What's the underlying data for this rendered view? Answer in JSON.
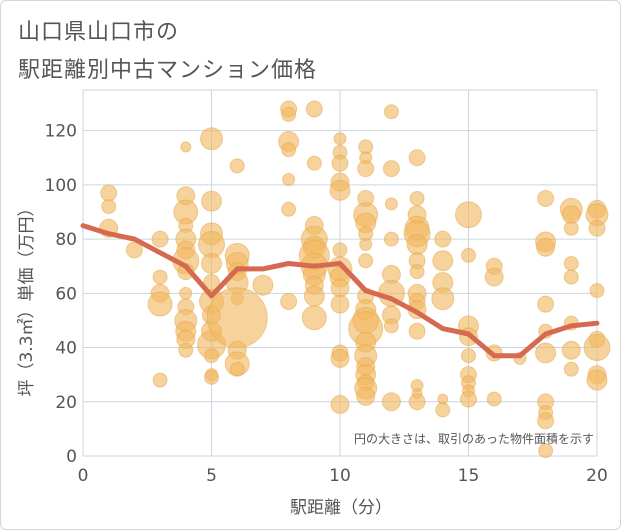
{
  "chart_data": {
    "type": "scatter",
    "title_lines": [
      "山口県山口市の",
      "駅距離別中古マンション価格"
    ],
    "xlabel": "駅距離（分）",
    "ylabel": "坪（3.3㎡）単価（万円）",
    "annotation": "円の大きさは、取引のあった物件面積を示す",
    "xlim": [
      0,
      20
    ],
    "ylim": [
      0,
      135
    ],
    "x_ticks": [
      0,
      5,
      10,
      15,
      20
    ],
    "y_ticks": [
      0,
      20,
      40,
      60,
      80,
      100,
      120
    ],
    "grid": true,
    "colors": {
      "bubble": "#f0b860",
      "line": "#d66a50",
      "grid": "#c9d6e0"
    },
    "line_series": {
      "x": [
        0,
        1,
        2,
        3,
        4,
        5,
        6,
        7,
        8,
        9,
        10,
        11,
        12,
        13,
        14,
        15,
        16,
        17,
        18,
        19,
        20
      ],
      "y": [
        85,
        82,
        80,
        75,
        70,
        59,
        69,
        69,
        71,
        70,
        71,
        61,
        58,
        53,
        47,
        45,
        37,
        37,
        45,
        48,
        49
      ]
    },
    "bubbles": [
      [
        1,
        97,
        8
      ],
      [
        1,
        92,
        7
      ],
      [
        1,
        84,
        9
      ],
      [
        2,
        76,
        8
      ],
      [
        3,
        80,
        8
      ],
      [
        3,
        66,
        7
      ],
      [
        3,
        60,
        9
      ],
      [
        3,
        56,
        12
      ],
      [
        3,
        28,
        7
      ],
      [
        4,
        114,
        5
      ],
      [
        4,
        96,
        9
      ],
      [
        4,
        90,
        12
      ],
      [
        4,
        85,
        7
      ],
      [
        4,
        80,
        10
      ],
      [
        4,
        76,
        9
      ],
      [
        4,
        72,
        13
      ],
      [
        4,
        68,
        8
      ],
      [
        4,
        60,
        6
      ],
      [
        4,
        55,
        8
      ],
      [
        4,
        50,
        11
      ],
      [
        4,
        46,
        10
      ],
      [
        4,
        43,
        9
      ],
      [
        4,
        39,
        7
      ],
      [
        5,
        117,
        11
      ],
      [
        5,
        94,
        10
      ],
      [
        5,
        82,
        11
      ],
      [
        5,
        78,
        13
      ],
      [
        5,
        71,
        10
      ],
      [
        5,
        64,
        8
      ],
      [
        5,
        57,
        12
      ],
      [
        5,
        52,
        9
      ],
      [
        5,
        46,
        10
      ],
      [
        5,
        41,
        14
      ],
      [
        5,
        37,
        7
      ],
      [
        5,
        30,
        6
      ],
      [
        5,
        29,
        7
      ],
      [
        6,
        107,
        7
      ],
      [
        6,
        74,
        12
      ],
      [
        6,
        71,
        11
      ],
      [
        6,
        68,
        9
      ],
      [
        6,
        64,
        11
      ],
      [
        6,
        58,
        6
      ],
      [
        6,
        51,
        30
      ],
      [
        6,
        39,
        9
      ],
      [
        6,
        34,
        12
      ],
      [
        6,
        32,
        7
      ],
      [
        7,
        63,
        10
      ],
      [
        8,
        128,
        8
      ],
      [
        8,
        126,
        7
      ],
      [
        8,
        116,
        10
      ],
      [
        8,
        113,
        7
      ],
      [
        8,
        102,
        6
      ],
      [
        8,
        91,
        7
      ],
      [
        8,
        57,
        8
      ],
      [
        9,
        128,
        8
      ],
      [
        9,
        108,
        7
      ],
      [
        9,
        85,
        9
      ],
      [
        9,
        80,
        13
      ],
      [
        9,
        77,
        11
      ],
      [
        9,
        74,
        15
      ],
      [
        9,
        70,
        13
      ],
      [
        9,
        67,
        11
      ],
      [
        9,
        63,
        9
      ],
      [
        9,
        59,
        10
      ],
      [
        9,
        51,
        12
      ],
      [
        10,
        117,
        6
      ],
      [
        10,
        112,
        7
      ],
      [
        10,
        108,
        8
      ],
      [
        10,
        101,
        9
      ],
      [
        10,
        98,
        10
      ],
      [
        10,
        76,
        7
      ],
      [
        10,
        69,
        12
      ],
      [
        10,
        66,
        10
      ],
      [
        10,
        62,
        9
      ],
      [
        10,
        56,
        9
      ],
      [
        10,
        38,
        8
      ],
      [
        10,
        36,
        9
      ],
      [
        10,
        19,
        9
      ],
      [
        11,
        114,
        7
      ],
      [
        11,
        110,
        6
      ],
      [
        11,
        106,
        8
      ],
      [
        11,
        95,
        8
      ],
      [
        11,
        89,
        12
      ],
      [
        11,
        86,
        10
      ],
      [
        11,
        82,
        7
      ],
      [
        11,
        78,
        6
      ],
      [
        11,
        72,
        7
      ],
      [
        11,
        59,
        8
      ],
      [
        11,
        54,
        10
      ],
      [
        11,
        50,
        13
      ],
      [
        11,
        47,
        17
      ],
      [
        11,
        42,
        10
      ],
      [
        11,
        37,
        11
      ],
      [
        11,
        33,
        9
      ],
      [
        11,
        30,
        10
      ],
      [
        11,
        27,
        8
      ],
      [
        11,
        25,
        11
      ],
      [
        11,
        22,
        9
      ],
      [
        12,
        127,
        7
      ],
      [
        12,
        106,
        8
      ],
      [
        12,
        93,
        6
      ],
      [
        12,
        80,
        7
      ],
      [
        12,
        67,
        9
      ],
      [
        12,
        60,
        13
      ],
      [
        12,
        52,
        9
      ],
      [
        12,
        48,
        7
      ],
      [
        12,
        20,
        9
      ],
      [
        13,
        110,
        8
      ],
      [
        13,
        95,
        7
      ],
      [
        13,
        89,
        9
      ],
      [
        13,
        84,
        12
      ],
      [
        13,
        82,
        13
      ],
      [
        13,
        78,
        10
      ],
      [
        13,
        72,
        8
      ],
      [
        13,
        68,
        7
      ],
      [
        13,
        60,
        9
      ],
      [
        13,
        57,
        8
      ],
      [
        13,
        54,
        9
      ],
      [
        13,
        46,
        8
      ],
      [
        13,
        26,
        6
      ],
      [
        13,
        23,
        5
      ],
      [
        13,
        20,
        8
      ],
      [
        14,
        80,
        8
      ],
      [
        14,
        72,
        10
      ],
      [
        14,
        64,
        10
      ],
      [
        14,
        58,
        11
      ],
      [
        14,
        21,
        5
      ],
      [
        14,
        17,
        7
      ],
      [
        15,
        89,
        13
      ],
      [
        15,
        74,
        7
      ],
      [
        15,
        48,
        10
      ],
      [
        15,
        44,
        9
      ],
      [
        15,
        37,
        7
      ],
      [
        15,
        30,
        8
      ],
      [
        15,
        27,
        7
      ],
      [
        15,
        24,
        6
      ],
      [
        15,
        21,
        8
      ],
      [
        16,
        70,
        8
      ],
      [
        16,
        66,
        9
      ],
      [
        16,
        38,
        8
      ],
      [
        16,
        21,
        7
      ],
      [
        17,
        36,
        6
      ],
      [
        18,
        95,
        8
      ],
      [
        18,
        79,
        10
      ],
      [
        18,
        77,
        9
      ],
      [
        18,
        56,
        8
      ],
      [
        18,
        46,
        7
      ],
      [
        18,
        38,
        10
      ],
      [
        18,
        20,
        8
      ],
      [
        18,
        16,
        7
      ],
      [
        18,
        13,
        8
      ],
      [
        18,
        2,
        7
      ],
      [
        19,
        91,
        11
      ],
      [
        19,
        89,
        9
      ],
      [
        19,
        84,
        7
      ],
      [
        19,
        71,
        7
      ],
      [
        19,
        66,
        7
      ],
      [
        19,
        49,
        7
      ],
      [
        19,
        39,
        9
      ],
      [
        19,
        32,
        7
      ],
      [
        20,
        91,
        9
      ],
      [
        20,
        89,
        11
      ],
      [
        20,
        84,
        8
      ],
      [
        20,
        61,
        7
      ],
      [
        20,
        43,
        8
      ],
      [
        20,
        40,
        13
      ],
      [
        20,
        30,
        9
      ],
      [
        20,
        28,
        10
      ]
    ]
  }
}
